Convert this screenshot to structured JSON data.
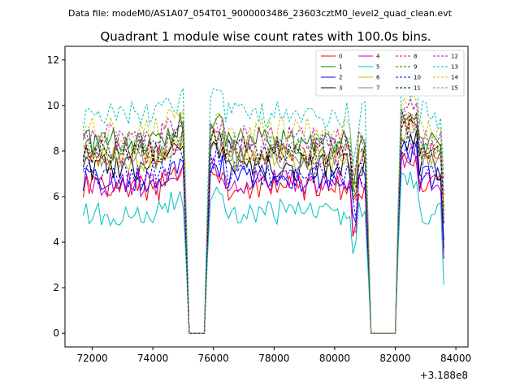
{
  "file_label": "Data file: modeM0/AS1A07_054T01_9000003486_23603cztM0_level2_quad_clean.evt",
  "chart_data": {
    "type": "line",
    "title": "Quadrant 1 module wise count rates with 100.0s bins.",
    "xlabel": "",
    "ylabel": "",
    "x_offset_label": "+3.188e8",
    "xlim": [
      71100,
      84400
    ],
    "ylim": [
      -0.6,
      12.6
    ],
    "x_ticks": [
      72000,
      74000,
      76000,
      78000,
      80000,
      82000,
      84000
    ],
    "x_tick_labels": [
      "72000",
      "74000",
      "76000",
      "78000",
      "80000",
      "82000",
      "84000"
    ],
    "y_ticks": [
      0,
      2,
      4,
      6,
      8,
      10,
      12
    ],
    "y_tick_labels": [
      "0",
      "2",
      "4",
      "6",
      "8",
      "10",
      "12"
    ],
    "legend_position": "top-right",
    "x_range": [
      71700,
      83650
    ],
    "bin": 100,
    "gaps": [
      [
        75150,
        75750
      ],
      [
        81150,
        82050
      ]
    ],
    "series": [
      {
        "name": "0",
        "color": "#ff0000",
        "dashed": false,
        "level": 6.4
      },
      {
        "name": "1",
        "color": "#008000",
        "dashed": false,
        "level": 8.4
      },
      {
        "name": "2",
        "color": "#0000ff",
        "dashed": false,
        "level": 6.8
      },
      {
        "name": "3",
        "color": "#000000",
        "dashed": false,
        "level": 7.3
      },
      {
        "name": "4",
        "color": "#bf00bf",
        "dashed": false,
        "level": 6.6
      },
      {
        "name": "5",
        "color": "#00bfbf",
        "dashed": false,
        "level": 5.3
      },
      {
        "name": "6",
        "color": "#bfbf00",
        "dashed": false,
        "level": 7.7
      },
      {
        "name": "7",
        "color": "#808080",
        "dashed": false,
        "level": 7.8
      },
      {
        "name": "8",
        "color": "#ff0000",
        "dashed": true,
        "level": 7.9
      },
      {
        "name": "9",
        "color": "#008000",
        "dashed": true,
        "level": 8.1
      },
      {
        "name": "10",
        "color": "#0000ff",
        "dashed": true,
        "level": 7.0
      },
      {
        "name": "11",
        "color": "#000000",
        "dashed": true,
        "level": 8.0
      },
      {
        "name": "12",
        "color": "#bf00bf",
        "dashed": true,
        "level": 8.6
      },
      {
        "name": "13",
        "color": "#00bfbf",
        "dashed": true,
        "level": 9.6
      },
      {
        "name": "14",
        "color": "#bfbf00",
        "dashed": true,
        "level": 8.9
      },
      {
        "name": "15",
        "color": "#808080",
        "dashed": true,
        "level": 8.3
      }
    ]
  }
}
